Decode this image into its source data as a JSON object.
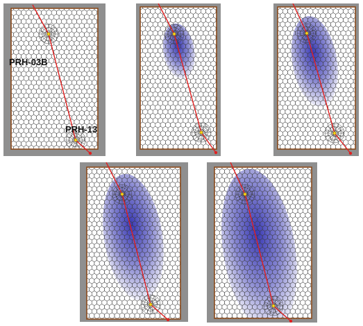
{
  "figure": {
    "panels": [
      {
        "id": "panel-1",
        "plume_level": 0.0,
        "show_labels": true
      },
      {
        "id": "panel-2",
        "plume_level": 0.22,
        "show_labels": false
      },
      {
        "id": "panel-3",
        "plume_level": 0.48,
        "show_labels": false
      },
      {
        "id": "panel-4",
        "plume_level": 0.74,
        "show_labels": false
      },
      {
        "id": "panel-5",
        "plume_level": 1.0,
        "show_labels": false
      }
    ],
    "labels": {
      "injection_well": "PRH-03B",
      "production_well": "PRH-13"
    },
    "colors": {
      "grid_background": "#ffffff",
      "grid_line": "#3a3a3a",
      "frame_border": "#8a4a1c",
      "panel_background": "#8f8f8f",
      "fault_line": "#e02020",
      "plume": "#2f2fb0",
      "well_marker": "#f7d21a"
    }
  }
}
